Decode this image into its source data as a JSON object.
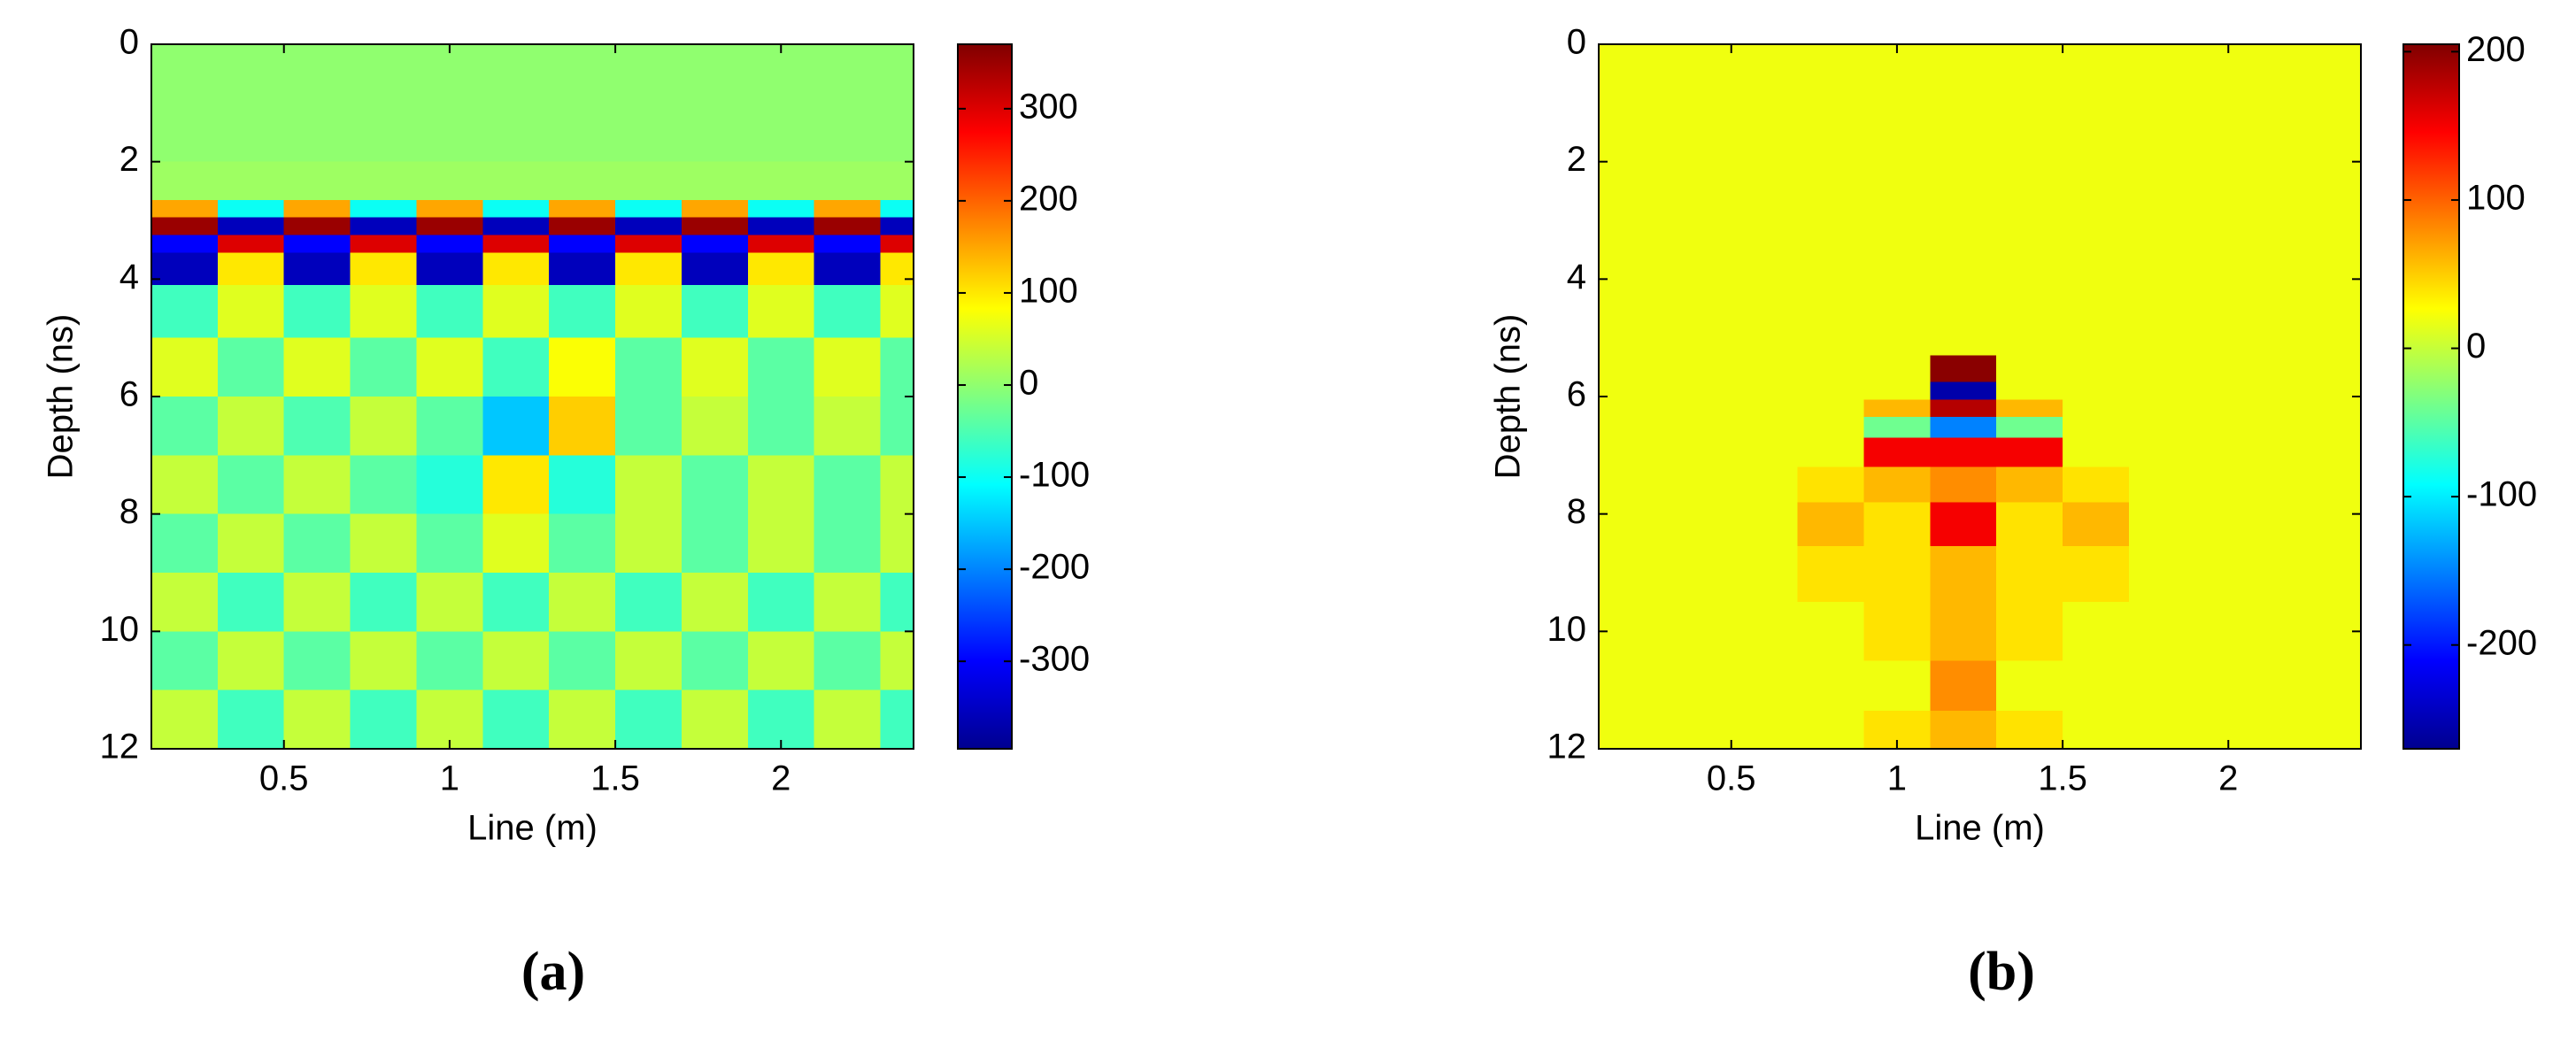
{
  "chart_data": [
    {
      "type": "heatmap",
      "caption": "(a)",
      "xlabel": "Line (m)",
      "ylabel": "Depth (ns)",
      "colormap": "jet",
      "y_inverted": true,
      "xlim": [
        0.1,
        2.4
      ],
      "ylim": [
        0,
        12
      ],
      "xticks": [
        0.5,
        1,
        1.5,
        2
      ],
      "yticks": [
        0,
        2,
        4,
        6,
        8,
        10,
        12
      ],
      "clim": [
        -395,
        370
      ],
      "cticks": [
        -300,
        -200,
        -100,
        0,
        100,
        200,
        300
      ],
      "x": [
        0.2,
        0.4,
        0.6,
        0.8,
        1,
        1.2,
        1.4,
        1.6,
        1.8,
        2,
        2.2,
        2.4
      ],
      "y": [
        0.5,
        1.5,
        2.5,
        2.8,
        3.1,
        3.4,
        3.7,
        4.5,
        5.5,
        6.5,
        7.5,
        8.5,
        9.5,
        10.5,
        11.5
      ],
      "z": [
        [
          0,
          0,
          0,
          0,
          0,
          0,
          0,
          0,
          0,
          0,
          0,
          0
        ],
        [
          0,
          0,
          0,
          0,
          0,
          0,
          0,
          0,
          0,
          0,
          0,
          0
        ],
        [
          10,
          10,
          10,
          10,
          10,
          10,
          10,
          10,
          10,
          10,
          10,
          10
        ],
        [
          150,
          -100,
          150,
          -100,
          150,
          -100,
          150,
          -100,
          150,
          -100,
          150,
          -100
        ],
        [
          350,
          -350,
          350,
          -350,
          350,
          -350,
          350,
          -350,
          350,
          -350,
          350,
          -350
        ],
        [
          -300,
          300,
          -300,
          300,
          -300,
          300,
          -300,
          300,
          -300,
          300,
          -300,
          300
        ],
        [
          -350,
          100,
          -350,
          100,
          -350,
          100,
          -350,
          100,
          -350,
          100,
          -350,
          100
        ],
        [
          -60,
          60,
          -60,
          60,
          -60,
          60,
          -60,
          60,
          -60,
          60,
          -60,
          60
        ],
        [
          60,
          -40,
          60,
          -40,
          60,
          -60,
          80,
          -40,
          60,
          -40,
          60,
          -40
        ],
        [
          -40,
          40,
          -50,
          40,
          -40,
          -150,
          120,
          -40,
          40,
          -40,
          40,
          -40
        ],
        [
          40,
          -40,
          40,
          -40,
          -80,
          100,
          -80,
          40,
          -40,
          40,
          -40,
          40
        ],
        [
          -40,
          40,
          -40,
          40,
          -40,
          60,
          -40,
          40,
          -40,
          40,
          -40,
          40
        ],
        [
          40,
          -60,
          40,
          -60,
          40,
          -60,
          40,
          -60,
          40,
          -60,
          40,
          -60
        ],
        [
          -40,
          40,
          -40,
          40,
          -40,
          40,
          -40,
          40,
          -40,
          40,
          -40,
          40
        ],
        [
          40,
          -60,
          40,
          -60,
          40,
          -60,
          40,
          -60,
          40,
          -60,
          40,
          -60
        ]
      ]
    },
    {
      "type": "heatmap",
      "caption": "(b)",
      "xlabel": "Line (m)",
      "ylabel": "Depth (ns)",
      "colormap": "jet",
      "y_inverted": true,
      "xlim": [
        0.1,
        2.4
      ],
      "ylim": [
        0,
        12
      ],
      "xticks": [
        0.5,
        1,
        1.5,
        2
      ],
      "yticks": [
        0,
        2,
        4,
        6,
        8,
        10,
        12
      ],
      "clim": [
        -270,
        205
      ],
      "cticks": [
        -200,
        -100,
        0,
        100,
        200
      ],
      "x": [
        0.2,
        0.4,
        0.6,
        0.8,
        1,
        1.2,
        1.4,
        1.6,
        1.8,
        2,
        2.2,
        2.4
      ],
      "y": [
        1,
        3,
        5,
        5.6,
        5.9,
        6.2,
        6.5,
        6.9,
        7.5,
        8.1,
        9,
        10,
        11,
        11.7
      ],
      "z": [
        [
          20,
          20,
          20,
          20,
          20,
          20,
          20,
          20,
          20,
          20,
          20,
          20
        ],
        [
          20,
          20,
          20,
          20,
          20,
          20,
          20,
          20,
          20,
          20,
          20,
          20
        ],
        [
          20,
          20,
          20,
          20,
          20,
          20,
          20,
          20,
          20,
          20,
          20,
          20
        ],
        [
          20,
          20,
          20,
          20,
          20,
          200,
          20,
          20,
          20,
          20,
          20,
          20
        ],
        [
          20,
          20,
          20,
          20,
          20,
          -250,
          20,
          20,
          20,
          20,
          20,
          20
        ],
        [
          20,
          20,
          20,
          20,
          60,
          180,
          60,
          20,
          20,
          20,
          20,
          20
        ],
        [
          20,
          20,
          20,
          20,
          -40,
          -150,
          -40,
          20,
          20,
          20,
          20,
          20
        ],
        [
          20,
          20,
          20,
          20,
          150,
          150,
          150,
          20,
          20,
          20,
          20,
          20
        ],
        [
          20,
          20,
          20,
          40,
          60,
          80,
          60,
          40,
          20,
          20,
          20,
          20
        ],
        [
          20,
          20,
          20,
          60,
          40,
          150,
          40,
          60,
          20,
          20,
          20,
          20
        ],
        [
          20,
          20,
          20,
          40,
          40,
          60,
          40,
          40,
          20,
          20,
          20,
          20
        ],
        [
          20,
          20,
          20,
          20,
          40,
          60,
          40,
          20,
          20,
          20,
          20,
          20
        ],
        [
          20,
          20,
          20,
          20,
          20,
          80,
          20,
          20,
          20,
          20,
          20,
          20
        ],
        [
          20,
          20,
          20,
          20,
          40,
          60,
          40,
          20,
          20,
          20,
          20,
          20
        ]
      ]
    }
  ]
}
